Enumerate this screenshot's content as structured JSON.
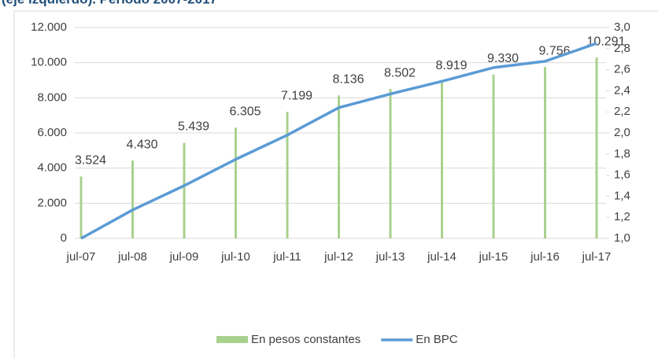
{
  "chart_data": {
    "type": "bar_line",
    "title": "(eje izquierdo). Período 2007-2017",
    "categories": [
      "jul-07",
      "jul-08",
      "jul-09",
      "jul-10",
      "jul-11",
      "jul-12",
      "jul-13",
      "jul-14",
      "jul-15",
      "jul-16",
      "jul-17"
    ],
    "series": [
      {
        "name": "En pesos constantes",
        "type": "bar",
        "color": "#a9d18e",
        "values": [
          3524,
          4430,
          5439,
          6305,
          7199,
          8136,
          8502,
          8919,
          9330,
          9756,
          10291
        ],
        "value_labels": [
          "3.524",
          "4.430",
          "5.439",
          "6.305",
          "7.199",
          "8.136",
          "8.502",
          "8.919",
          "9.330",
          "9.756",
          "10.291"
        ]
      },
      {
        "name": "En BPC",
        "type": "line",
        "color": "#5b9bd5",
        "axis": "y2",
        "values": [
          1.0,
          1.27,
          1.5,
          1.75,
          1.98,
          2.24,
          2.37,
          2.49,
          2.62,
          2.68,
          2.85
        ]
      }
    ],
    "ylim": [
      0,
      12000
    ],
    "yticks": [
      0,
      {
        "value": 2000,
        "label": "2.000"
      },
      {
        "value": 4000,
        "label": "4.000"
      },
      {
        "value": 6000,
        "label": "6.000"
      },
      {
        "value": 8000,
        "label": "8.000"
      },
      {
        "value": 10000,
        "label": "10.000"
      },
      {
        "value": 12000,
        "label": "12.000"
      }
    ],
    "y2lim": [
      1.0,
      3.0
    ],
    "y2ticks": [
      {
        "value": 1.0,
        "label": "1,0"
      },
      {
        "value": 1.2,
        "label": "1,2"
      },
      {
        "value": 1.4,
        "label": "1,4"
      },
      {
        "value": 1.6,
        "label": "1,6"
      },
      {
        "value": 1.8,
        "label": "1,8"
      },
      {
        "value": 2.0,
        "label": "2,0"
      },
      {
        "value": 2.2,
        "label": "2,2"
      },
      {
        "value": 2.4,
        "label": "2,4"
      },
      {
        "value": 2.6,
        "label": "2,6"
      },
      {
        "value": 2.8,
        "label": "2,8"
      },
      {
        "value": 3.0,
        "label": "3,0"
      }
    ],
    "grid": true,
    "legend": "bottom"
  }
}
